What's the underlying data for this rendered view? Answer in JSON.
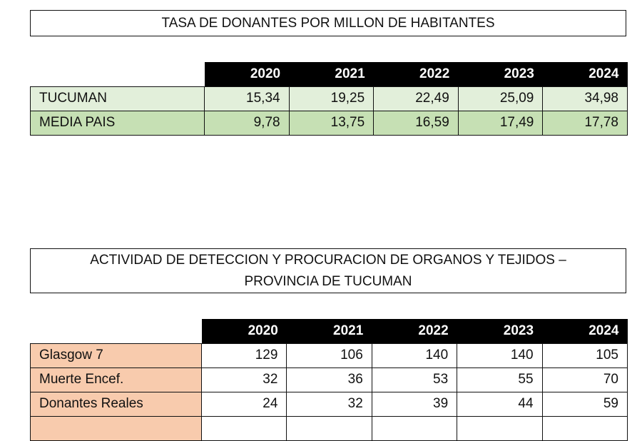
{
  "table1": {
    "title": "TASA DE DONANTES POR MILLON DE HABITANTES",
    "years": [
      "2020",
      "2021",
      "2022",
      "2023",
      "2024"
    ],
    "rows": [
      {
        "label": "TUCUMAN",
        "values": [
          "15,34",
          "19,25",
          "22,49",
          "25,09",
          "34,98"
        ]
      },
      {
        "label": "MEDIA PAIS",
        "values": [
          "9,78",
          "13,75",
          "16,59",
          "17,49",
          "17,78"
        ]
      }
    ]
  },
  "table2": {
    "title_line1": "ACTIVIDAD DE DETECCION Y PROCURACION DE ORGANOS Y TEJIDOS –",
    "title_line2": "PROVINCIA DE TUCUMAN",
    "years": [
      "2020",
      "2021",
      "2022",
      "2023",
      "2024"
    ],
    "rows": [
      {
        "label": "Glasgow 7",
        "values": [
          "129",
          "106",
          "140",
          "140",
          "105"
        ]
      },
      {
        "label": "Muerte Encef.",
        "values": [
          "32",
          "36",
          "53",
          "55",
          "70"
        ]
      },
      {
        "label": "Donantes Reales",
        "values": [
          "24",
          "32",
          "39",
          "44",
          "59"
        ]
      },
      {
        "label": "",
        "values": [
          "",
          "",
          "",
          "",
          ""
        ]
      }
    ]
  },
  "colors": {
    "green_light": "#e2efda",
    "green": "#c6e0b4",
    "orange": "#f8cbad",
    "header": "#000000"
  }
}
